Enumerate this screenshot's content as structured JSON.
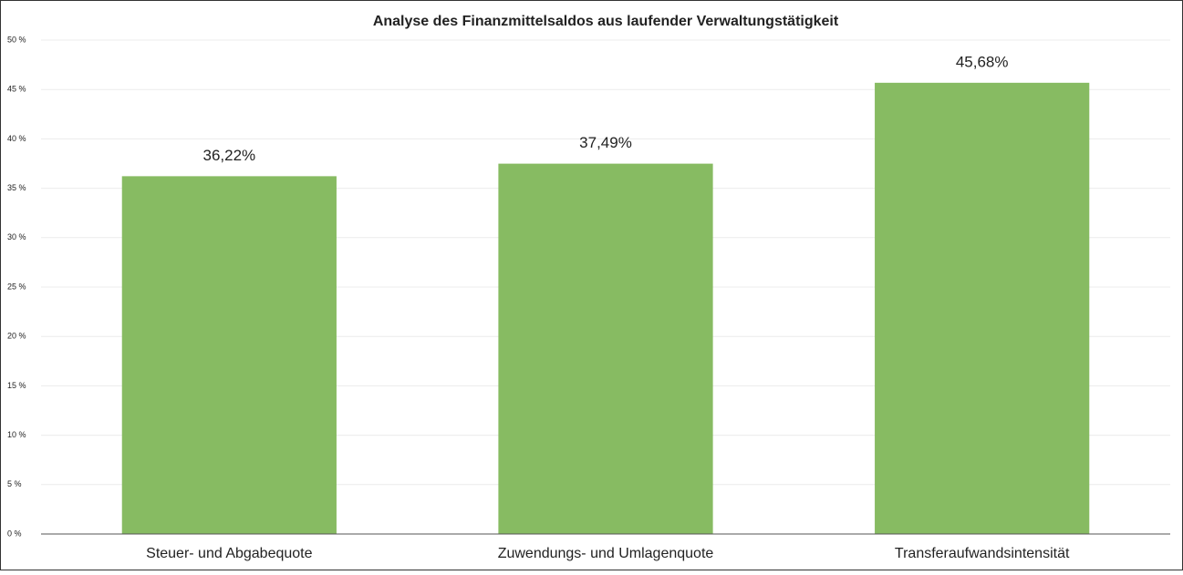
{
  "chart_data": {
    "type": "bar",
    "title": "Analyse des Finanzmittelsaldos aus laufender Verwaltungstätigkeit",
    "categories": [
      "Steuer- und Abgabequote",
      "Zuwendungs- und Umlagenquote",
      "Transferaufwandsintensität"
    ],
    "values": [
      36.22,
      37.49,
      45.68
    ],
    "value_labels": [
      "36,22%",
      "37,49%",
      "45,68%"
    ],
    "color": "#87bb62",
    "ylim": [
      0,
      50
    ],
    "yticks": [
      {
        "value": 0,
        "label": "0 %"
      },
      {
        "value": 5,
        "label": "5 %"
      },
      {
        "value": 10,
        "label": "10 %"
      },
      {
        "value": 15,
        "label": "15 %"
      },
      {
        "value": 20,
        "label": "20 %"
      },
      {
        "value": 25,
        "label": "25 %"
      },
      {
        "value": 30,
        "label": "30 %"
      },
      {
        "value": 35,
        "label": "35 %"
      },
      {
        "value": 40,
        "label": "40 %"
      },
      {
        "value": 45,
        "label": "45 %"
      },
      {
        "value": 50,
        "label": "50 %"
      }
    ],
    "grid": true
  }
}
